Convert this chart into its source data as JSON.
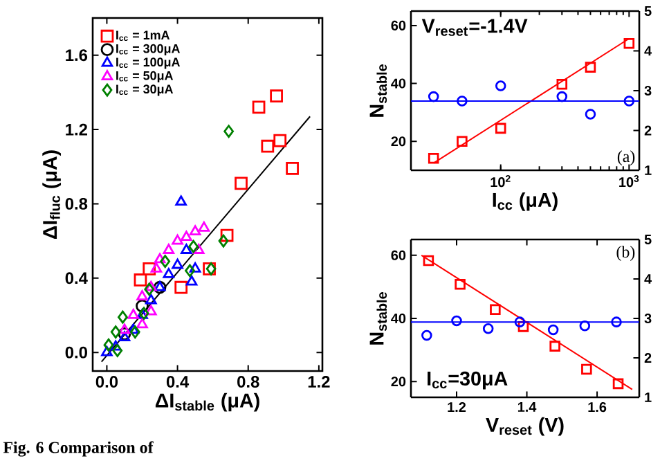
{
  "chart_data": [
    {
      "type": "scatter",
      "xlabel": "ΔI$_{stable}$ (μA)",
      "ylabel": "ΔI$_{fluc}$ (μA)",
      "xlim": [
        -0.08,
        1.22
      ],
      "ylim": [
        -0.1,
        1.8
      ],
      "xticks": [
        {
          "value": 0,
          "label": "0.0"
        },
        0.4,
        0.8,
        1.2
      ],
      "yticks": [
        {
          "value": 0,
          "label": "0.0"
        },
        0.4,
        0.8,
        1.2,
        1.6
      ],
      "legend": "top left",
      "annotations": [
        "Fig. 6 Comparison of"
      ],
      "series": [
        {
          "name": "I$_{cc}$ = 1mA",
          "color": "#ff0000",
          "marker": "square",
          "x": [
            0.24,
            0.19,
            0.42,
            0.58,
            0.68,
            0.76,
            0.86,
            0.91,
            0.96,
            0.98,
            1.05
          ],
          "values": [
            0.45,
            0.39,
            0.35,
            0.45,
            0.63,
            0.91,
            1.32,
            1.11,
            1.38,
            1.14,
            0.99
          ]
        },
        {
          "name": "I$_{cc}$ = 300μA",
          "color": "#000000",
          "marker": "circle",
          "x": [
            0.1,
            0.2,
            0.3
          ],
          "values": [
            0.1,
            0.25,
            0.35
          ]
        },
        {
          "name": "I$_{cc}$ = 100μA",
          "color": "#0000ff",
          "marker": "triangle",
          "x": [
            0.0,
            0.05,
            0.1,
            0.15,
            0.2,
            0.25,
            0.3,
            0.35,
            0.4,
            0.45,
            0.5,
            0.48,
            0.42
          ],
          "values": [
            0.0,
            0.03,
            0.08,
            0.12,
            0.2,
            0.28,
            0.35,
            0.42,
            0.47,
            0.55,
            0.45,
            0.38,
            0.81
          ]
        },
        {
          "name": "I$_{cc}$ = 50μA",
          "color": "#ff00ff",
          "marker": "triangle",
          "x": [
            0.1,
            0.15,
            0.2,
            0.25,
            0.28,
            0.3,
            0.35,
            0.4,
            0.45,
            0.5,
            0.55,
            0.52,
            0.25,
            0.2
          ],
          "values": [
            0.12,
            0.2,
            0.3,
            0.35,
            0.45,
            0.5,
            0.55,
            0.6,
            0.62,
            0.65,
            0.67,
            0.55,
            0.22,
            0.15
          ]
        },
        {
          "name": "I$_{cc}$ = 30μA",
          "color": "#008000",
          "marker": "diamond",
          "x": [
            0.69,
            0.66,
            0.59,
            0.47,
            0.49,
            0.33,
            0.24,
            0.21,
            0.16,
            0.09,
            0.05,
            0.01,
            0.06
          ],
          "values": [
            1.19,
            0.6,
            0.45,
            0.44,
            0.57,
            0.49,
            0.34,
            0.21,
            0.11,
            0.19,
            0.11,
            0.04,
            0.01
          ]
        },
        {
          "type": "line",
          "color": "#000000",
          "x": [
            -0.03,
            1.15
          ],
          "values": [
            -0.05,
            1.27
          ]
        }
      ]
    },
    {
      "type": "scatter",
      "xlabel": "I$_{cc}$ (μA)",
      "ylabel": "N$_{stable}$",
      "log": "x",
      "xlim": [
        20,
        1200
      ],
      "ylim": [
        10,
        65
      ],
      "y2lim": [
        1,
        5
      ],
      "xticks": [
        {
          "value": 100,
          "label": "10$^{2}$"
        },
        {
          "value": 1000,
          "label": "10$^{3}$"
        }
      ],
      "yticks": [
        20,
        40,
        60
      ],
      "y2ticks": [
        1,
        2,
        3,
        4,
        5
      ],
      "annotations": [
        "V$_{reset}$=-1.4V",
        "(a)"
      ],
      "ref_lines": [
        {
          "axis": "y2",
          "value": 2.74,
          "color": "#0000ff"
        }
      ],
      "series": [
        {
          "color": "#ff0000",
          "marker": "square",
          "x": [
            30,
            50,
            100,
            300,
            500,
            1000
          ],
          "values": [
            14.1,
            20,
            24.5,
            39.7,
            45.6,
            53.8
          ]
        },
        {
          "type": "line",
          "color": "#ff0000",
          "x": [
            30,
            1000
          ],
          "values": [
            12.5,
            55.5
          ]
        },
        {
          "color": "#0000ff",
          "marker": "circle",
          "axis": "y2",
          "x": [
            30,
            50,
            100,
            300,
            500,
            1000
          ],
          "values": [
            2.85,
            2.74,
            3.12,
            2.85,
            2.41,
            2.74
          ]
        }
      ]
    },
    {
      "type": "scatter",
      "xlabel": "V$_{reset}$ (V)",
      "ylabel": "N$_{stable}$",
      "xlim": [
        1.07,
        1.72
      ],
      "ylim": [
        15,
        65
      ],
      "y2lim": [
        1,
        5
      ],
      "xticks": [
        1.2,
        1.4,
        1.6
      ],
      "yticks": [
        20,
        40,
        60
      ],
      "y2ticks": [
        1,
        2,
        3,
        4,
        5
      ],
      "annotations": [
        "I$_{cc}$=30μA",
        "(b)"
      ],
      "ref_lines": [
        {
          "axis": "y2",
          "value": 2.91,
          "color": "#0000ff"
        }
      ],
      "series": [
        {
          "color": "#ff0000",
          "marker": "square",
          "x": [
            1.12,
            1.21,
            1.31,
            1.39,
            1.48,
            1.57,
            1.66
          ],
          "values": [
            58.3,
            50.8,
            42.8,
            37.4,
            31.2,
            23.9,
            19.3
          ]
        },
        {
          "type": "line",
          "color": "#ff0000",
          "x": [
            1.1,
            1.7
          ],
          "values": [
            60,
            17.5
          ]
        },
        {
          "color": "#0000ff",
          "marker": "circle",
          "axis": "y2",
          "x": [
            1.115,
            1.2,
            1.29,
            1.38,
            1.475,
            1.565,
            1.655
          ],
          "values": [
            2.57,
            2.94,
            2.74,
            2.91,
            2.71,
            2.81,
            2.91
          ]
        }
      ]
    }
  ]
}
